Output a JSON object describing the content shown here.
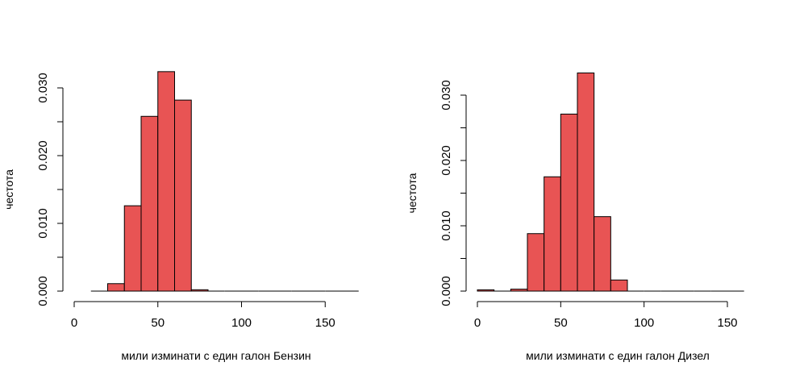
{
  "colors": {
    "bar_fill": "#e85454",
    "bar_stroke": "#000000",
    "background": "#ffffff"
  },
  "chart_data": [
    {
      "type": "bar",
      "title": "",
      "xlabel": "мили изминати с един галон Бензин",
      "ylabel": "честота",
      "bin_width": 10,
      "bins": [
        [
          10,
          20
        ],
        [
          20,
          30
        ],
        [
          30,
          40
        ],
        [
          40,
          50
        ],
        [
          50,
          60
        ],
        [
          60,
          70
        ],
        [
          70,
          80
        ],
        [
          80,
          90
        ],
        [
          90,
          100
        ],
        [
          100,
          110
        ],
        [
          110,
          120
        ],
        [
          120,
          130
        ],
        [
          130,
          140
        ],
        [
          140,
          150
        ],
        [
          150,
          160
        ],
        [
          160,
          170
        ]
      ],
      "values": [
        0.0,
        0.0011,
        0.0126,
        0.0258,
        0.0324,
        0.0282,
        0.0002,
        0.0,
        0.0,
        0.0,
        0.0,
        0.0,
        0.0,
        0.0,
        0.0,
        0.0
      ],
      "xlim": [
        0,
        170
      ],
      "ylim": [
        0,
        0.03
      ],
      "x_ticks": [
        "0",
        "50",
        "100",
        "150"
      ],
      "x_tick_values": [
        0,
        50,
        100,
        150
      ],
      "y_ticks": [
        "0.000",
        "0.010",
        "0.020",
        "0.030"
      ],
      "y_tick_values": [
        0,
        0.01,
        0.02,
        0.03
      ],
      "y_minor_tick_values": [
        0.005,
        0.015,
        0.025
      ],
      "grid": false
    },
    {
      "type": "bar",
      "title": "",
      "xlabel": "мили изминати с един галон Дизел",
      "ylabel": "честота",
      "bin_width": 10,
      "bins": [
        [
          0,
          10
        ],
        [
          10,
          20
        ],
        [
          20,
          30
        ],
        [
          30,
          40
        ],
        [
          40,
          50
        ],
        [
          50,
          60
        ],
        [
          60,
          70
        ],
        [
          70,
          80
        ],
        [
          80,
          90
        ],
        [
          90,
          100
        ],
        [
          100,
          110
        ],
        [
          110,
          120
        ],
        [
          120,
          130
        ],
        [
          130,
          140
        ],
        [
          140,
          150
        ],
        [
          150,
          160
        ]
      ],
      "values": [
        0.0002,
        0.0,
        0.0003,
        0.0088,
        0.0175,
        0.0271,
        0.0334,
        0.0114,
        0.0017,
        0.0,
        0.0,
        0.0,
        0.0,
        0.0,
        0.0,
        0.0
      ],
      "xlim": [
        0,
        160
      ],
      "ylim": [
        0,
        0.03
      ],
      "x_ticks": [
        "0",
        "50",
        "100",
        "150"
      ],
      "x_tick_values": [
        0,
        50,
        100,
        150
      ],
      "y_ticks": [
        "0.000",
        "0.010",
        "0.020",
        "0.030"
      ],
      "y_tick_values": [
        0,
        0.01,
        0.02,
        0.03
      ],
      "y_minor_tick_values": [
        0.005,
        0.015,
        0.025
      ],
      "grid": false
    }
  ]
}
